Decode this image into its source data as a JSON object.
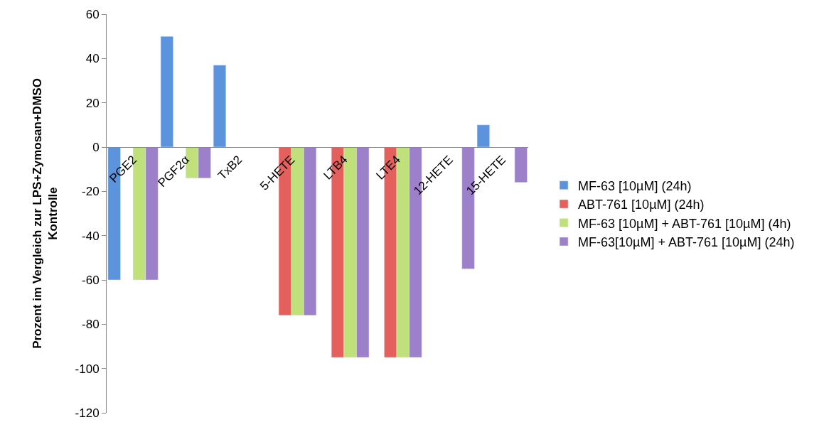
{
  "chart_data": {
    "type": "bar",
    "ylabel": "Prozent im Vergleich zur LPS+Zymosan+DMSO Kontrolle",
    "categories": [
      "PGE2",
      "PGF2α",
      "TxB2",
      "5-HETE",
      "LTB4",
      "LTE4",
      "12-HETE",
      "15-HETE"
    ],
    "series": [
      {
        "name": "MF-63 [10µM] (24h)",
        "color": "#5b93dc",
        "values": [
          -60,
          50,
          37,
          null,
          null,
          null,
          null,
          10
        ]
      },
      {
        "name": "ABT-761 [10µM] (24h)",
        "color": "#e4605c",
        "values": [
          null,
          null,
          null,
          -76,
          -95,
          -95,
          null,
          null
        ]
      },
      {
        "name": "MF-63 [10µM] + ABT-761 [10µM] (4h)",
        "color": "#bfe07a",
        "values": [
          -60,
          -14,
          null,
          -76,
          -95,
          -95,
          null,
          null
        ]
      },
      {
        "name": "MF-63[10µM] + ABT-761 [10µM] (24h)",
        "color": "#9c80c9",
        "values": [
          -60,
          -14,
          null,
          -76,
          -95,
          -95,
          -55,
          -16
        ]
      }
    ],
    "ylim": [
      -120,
      60
    ],
    "yticks": [
      -120,
      -100,
      -80,
      -60,
      -40,
      -20,
      0,
      20,
      40,
      60
    ],
    "legend": "right"
  }
}
